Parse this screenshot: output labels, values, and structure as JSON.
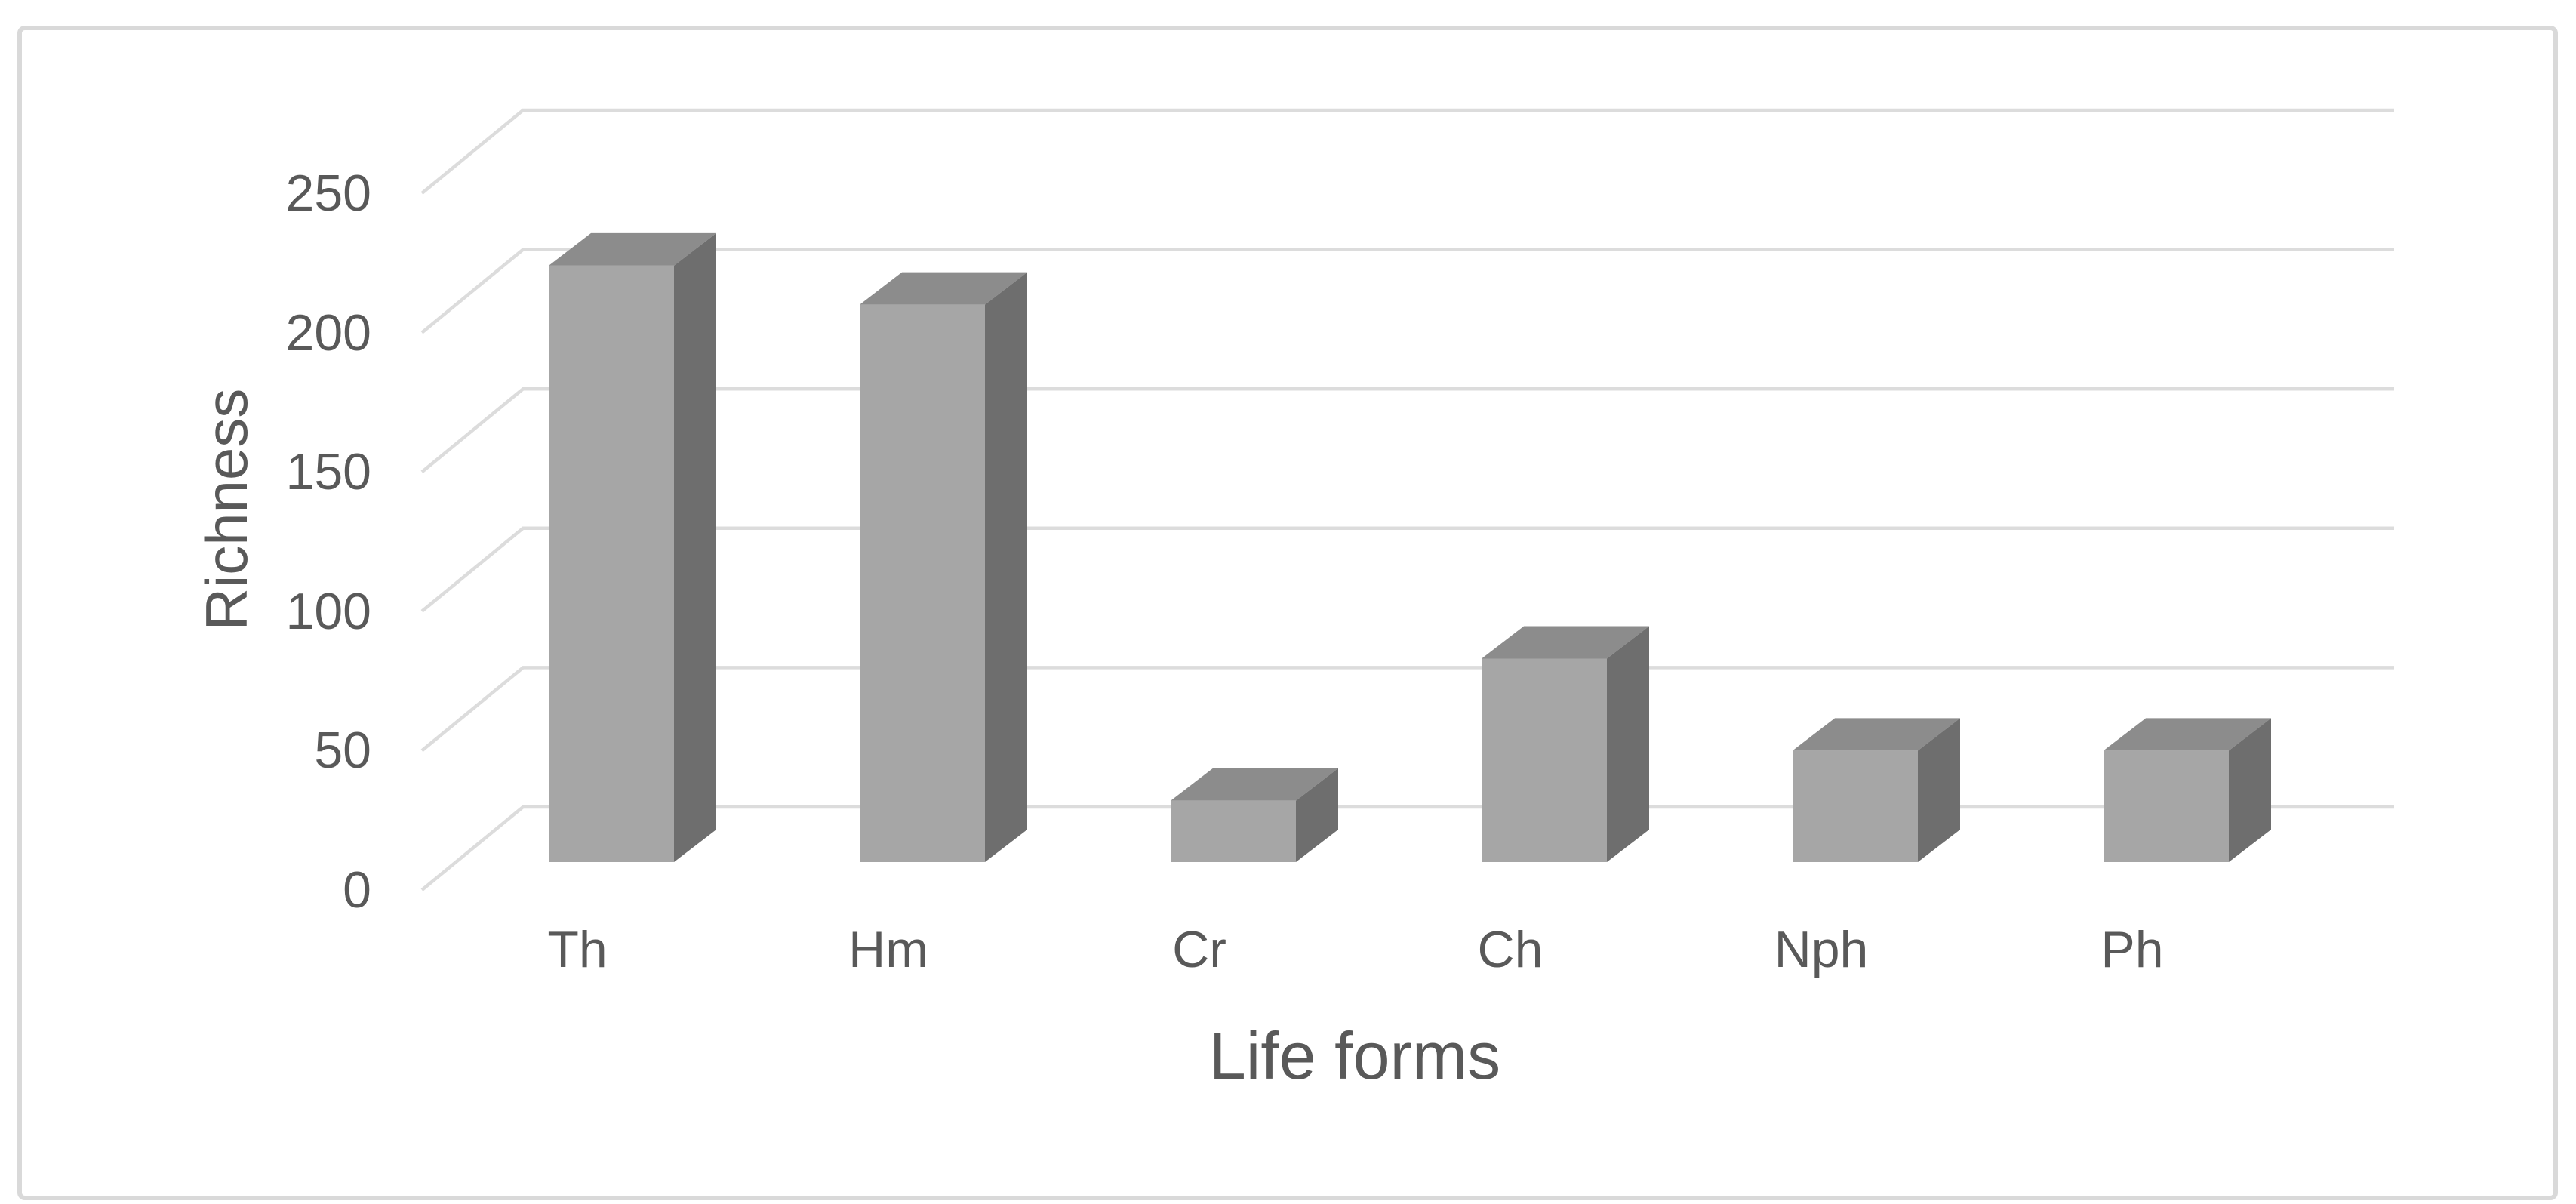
{
  "chart_data": {
    "type": "bar",
    "style": "3d-column",
    "title": "",
    "xlabel": "Life forms",
    "ylabel": "Richness",
    "categories": [
      "Th",
      "Hm",
      "Cr",
      "Ch",
      "Nph",
      "Ph"
    ],
    "values": [
      214,
      200,
      22,
      73,
      40,
      40
    ],
    "series": [
      {
        "name": "Richness",
        "values": [
          214,
          200,
          22,
          73,
          40,
          40
        ]
      }
    ],
    "ylim": [
      0,
      250
    ],
    "ytick_step": 50,
    "ytick_labels": [
      "250",
      "200",
      "150",
      "100",
      "50",
      "0"
    ],
    "grid": true,
    "legend": false,
    "colors": {
      "bar_front": "#a6a6a6",
      "bar_top": "#8c8c8c",
      "bar_side": "#6e6e6e",
      "gridline": "#dcdcdc",
      "text": "#595959",
      "frame_border": "#d9d9d9",
      "background": "#ffffff"
    }
  }
}
